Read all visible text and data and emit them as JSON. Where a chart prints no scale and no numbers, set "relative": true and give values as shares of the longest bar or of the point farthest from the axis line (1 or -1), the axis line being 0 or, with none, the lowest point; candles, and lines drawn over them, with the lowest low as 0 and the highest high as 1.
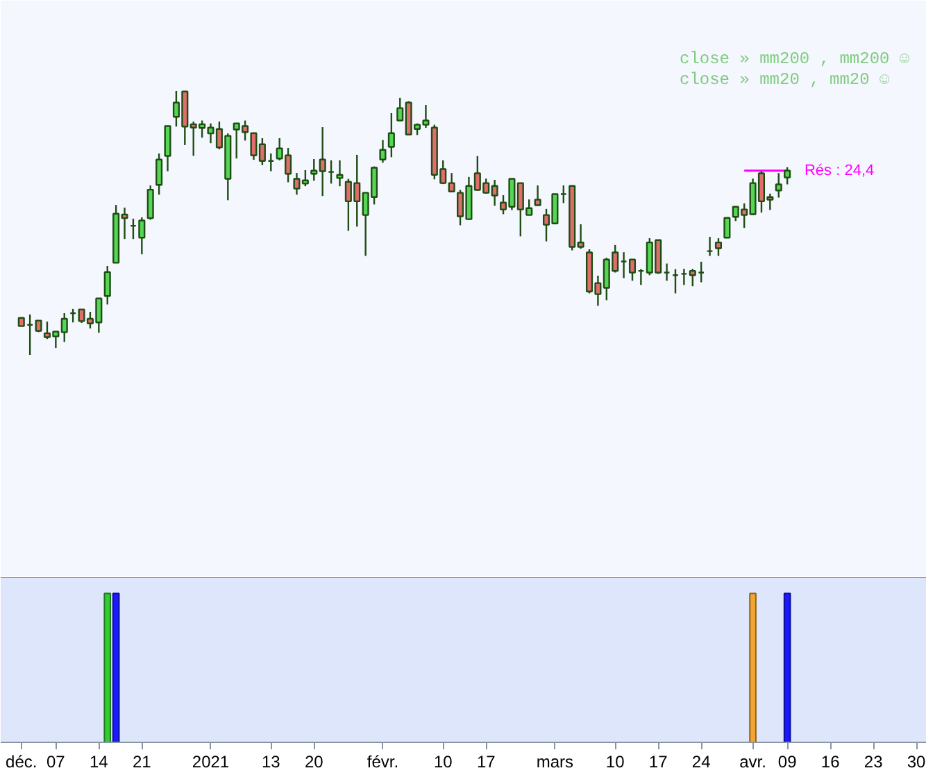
{
  "chart_data": [
    {
      "type": "candlestick",
      "relative": true,
      "tick_labels": false,
      "categories": [
        null,
        null,
        null,
        null,
        null,
        null,
        null,
        null,
        null,
        null,
        null,
        null,
        null,
        null,
        null,
        null,
        null,
        null,
        null,
        null,
        null,
        null,
        null,
        null,
        null,
        null,
        null,
        null,
        null,
        null,
        null,
        null,
        null,
        null,
        null,
        null,
        null,
        null,
        null,
        null,
        null,
        null,
        null,
        null,
        null,
        null,
        null,
        null,
        null,
        null,
        null,
        null,
        null,
        null,
        null,
        null,
        null,
        null,
        null,
        null,
        null,
        null,
        null,
        null,
        null,
        null,
        null,
        null,
        null,
        null,
        null,
        null,
        null,
        null,
        null,
        null,
        null,
        null,
        null,
        null,
        null,
        null,
        null,
        null,
        null,
        null,
        null,
        null,
        null,
        null,
        null,
        null,
        null,
        null,
        null,
        null,
        null,
        null,
        null,
        null,
        null,
        null,
        null,
        null,
        null
      ],
      "ohlc": [
        [
          0.14,
          0.14,
          0.109,
          0.109
        ],
        [
          0.114,
          0.153,
          0,
          0.114
        ],
        [
          0.13,
          0.13,
          0.086,
          0.091
        ],
        [
          0.082,
          0.126,
          0.06,
          0.067
        ],
        [
          0.07,
          0.088,
          0.026,
          0.088
        ],
        [
          0.086,
          0.158,
          0.049,
          0.137
        ],
        [
          0.158,
          0.174,
          0.123,
          0.158
        ],
        [
          0.172,
          0.172,
          0.121,
          0.128
        ],
        [
          0.137,
          0.163,
          0.1,
          0.119
        ],
        [
          0.123,
          0.214,
          0.084,
          0.214
        ],
        [
          0.223,
          0.337,
          0.191,
          0.314
        ],
        [
          0.349,
          0.568,
          0.349,
          0.535
        ],
        [
          0.532,
          0.558,
          0.439,
          0.518
        ],
        [
          0.489,
          0.516,
          0.439,
          0.489
        ],
        [
          0.444,
          0.521,
          0.381,
          0.509
        ],
        [
          0.518,
          0.642,
          0.512,
          0.626
        ],
        [
          0.644,
          0.763,
          0.607,
          0.74
        ],
        [
          0.754,
          0.867,
          0.696,
          0.867
        ],
        [
          0.902,
          1,
          0.865,
          0.956
        ],
        [
          0.998,
          0.998,
          0.795,
          0.865
        ],
        [
          0.874,
          0.884,
          0.754,
          0.861
        ],
        [
          0.86,
          0.888,
          0.823,
          0.874
        ],
        [
          0.839,
          0.877,
          0.802,
          0.861
        ],
        [
          0.856,
          0.884,
          0.779,
          0.786
        ],
        [
          0.667,
          0.839,
          0.586,
          0.83
        ],
        [
          0.854,
          0.877,
          0.744,
          0.877
        ],
        [
          0.867,
          0.888,
          0.812,
          0.844
        ],
        [
          0.84,
          0.84,
          0.739,
          0.756
        ],
        [
          0.798,
          0.821,
          0.719,
          0.735
        ],
        [
          0.735,
          0.763,
          0.696,
          0.735
        ],
        [
          0.744,
          0.821,
          0.737,
          0.782
        ],
        [
          0.756,
          0.784,
          0.654,
          0.686
        ],
        [
          0.667,
          0.689,
          0.607,
          0.63
        ],
        [
          0.649,
          0.7,
          0.639,
          0.661
        ],
        [
          0.686,
          0.742,
          0.66,
          0.698
        ],
        [
          0.74,
          0.863,
          0.602,
          0.696
        ],
        [
          0.693,
          0.737,
          0.649,
          0.693
        ],
        [
          0.67,
          0.737,
          0.639,
          0.682
        ],
        [
          0.656,
          0.667,
          0.47,
          0.582
        ],
        [
          0.651,
          0.758,
          0.486,
          0.582
        ],
        [
          0.53,
          0.614,
          0.375,
          0.614
        ],
        [
          0.598,
          0.714,
          0.57,
          0.709
        ],
        [
          0.74,
          0.814,
          0.728,
          0.777
        ],
        [
          0.788,
          0.916,
          0.749,
          0.84
        ],
        [
          0.888,
          0.974,
          0.888,
          0.935
        ],
        [
          0.956,
          0.961,
          0.835,
          0.835
        ],
        [
          0.856,
          0.877,
          0.833,
          0.872
        ],
        [
          0.872,
          0.947,
          0.86,
          0.888
        ],
        [
          0.861,
          0.872,
          0.665,
          0.682
        ],
        [
          0.704,
          0.737,
          0.647,
          0.651
        ],
        [
          0.651,
          0.689,
          0.616,
          0.619
        ],
        [
          0.614,
          0.625,
          0.491,
          0.525
        ],
        [
          0.514,
          0.674,
          0.512,
          0.64
        ],
        [
          0.688,
          0.753,
          0.623,
          0.625
        ],
        [
          0.651,
          0.668,
          0.611,
          0.614
        ],
        [
          0.64,
          0.663,
          0.565,
          0.604
        ],
        [
          0.577,
          0.605,
          0.533,
          0.551
        ],
        [
          0.561,
          0.667,
          0.549,
          0.667
        ],
        [
          0.651,
          0.651,
          0.449,
          0.551
        ],
        [
          0.53,
          0.589,
          0.53,
          0.556
        ],
        [
          0.588,
          0.642,
          0.565,
          0.567
        ],
        [
          0.53,
          0.553,
          0.43,
          0.493
        ],
        [
          0.498,
          0.609,
          0.498,
          0.609
        ],
        [
          0.609,
          0.642,
          0.575,
          0.609
        ],
        [
          0.64,
          0.64,
          0.396,
          0.409
        ],
        [
          0.426,
          0.495,
          0.402,
          0.409
        ],
        [
          0.388,
          0.4,
          0.233,
          0.24
        ],
        [
          0.272,
          0.3,
          0.186,
          0.23
        ],
        [
          0.254,
          0.368,
          0.207,
          0.361
        ],
        [
          0.388,
          0.416,
          0.312,
          0.318
        ],
        [
          0.354,
          0.389,
          0.291,
          0.354
        ],
        [
          0.361,
          0.361,
          0.281,
          0.312
        ],
        [
          0.318,
          0.325,
          0.265,
          0.318
        ],
        [
          0.312,
          0.442,
          0.302,
          0.426
        ],
        [
          0.435,
          0.435,
          0.307,
          0.312
        ],
        [
          0.312,
          0.346,
          0.281,
          0.312
        ],
        [
          0.302,
          0.325,
          0.233,
          0.302
        ],
        [
          0.307,
          0.326,
          0.265,
          0.307
        ],
        [
          0.318,
          0.326,
          0.26,
          0.302
        ],
        [
          0.312,
          0.353,
          0.275,
          0.312
        ],
        [
          0.393,
          0.447,
          0.375,
          0.393
        ],
        [
          0.426,
          0.442,
          0.375,
          0.404
        ],
        [
          0.444,
          0.519,
          0.444,
          0.519
        ],
        [
          0.523,
          0.561,
          0.507,
          0.561
        ],
        [
          0.551,
          0.574,
          0.481,
          0.53
        ],
        [
          0.533,
          0.668,
          0.53,
          0.651
        ],
        [
          0.688,
          0.696,
          0.539,
          0.582
        ],
        [
          0.598,
          0.611,
          0.549,
          0.588
        ],
        [
          0.623,
          0.689,
          0.596,
          0.646
        ],
        [
          0.672,
          0.711,
          0.646,
          0.698
        ],
        null,
        null,
        null,
        null,
        null,
        null,
        null,
        null,
        null,
        null,
        null,
        null,
        null,
        null,
        null
      ],
      "colors": [
        "#e26d6d",
        "#1e4d14",
        "#e26d6d",
        "#e26d6d",
        "#55d655",
        "#55d655",
        "#1e4d14",
        "#e26d6d",
        "#e26d6d",
        "#55d655",
        "#55d655",
        "#55d655",
        "#e26d6d",
        "#1e4d14",
        "#55d655",
        "#55d655",
        "#55d655",
        "#55d655",
        "#55d655",
        "#e26d6d",
        "#e26d6d",
        "#55d655",
        "#55d655",
        "#e26d6d",
        "#55d655",
        "#55d655",
        "#e26d6d",
        "#e26d6d",
        "#e26d6d",
        "#1e4d14",
        "#55d655",
        "#e26d6d",
        "#e26d6d",
        "#55d655",
        "#55d655",
        "#e26d6d",
        "#1e4d14",
        "#55d655",
        "#e26d6d",
        "#e26d6d",
        "#55d655",
        "#55d655",
        "#55d655",
        "#55d655",
        "#55d655",
        "#e26d6d",
        "#55d655",
        "#55d655",
        "#e26d6d",
        "#e26d6d",
        "#e26d6d",
        "#e26d6d",
        "#55d655",
        "#e26d6d",
        "#e26d6d",
        "#e26d6d",
        "#e26d6d",
        "#55d655",
        "#e26d6d",
        "#55d655",
        "#e26d6d",
        "#e26d6d",
        "#55d655",
        "#1e4d14",
        "#e26d6d",
        "#e26d6d",
        "#e26d6d",
        "#e26d6d",
        "#55d655",
        "#e26d6d",
        "#1e4d14",
        "#e26d6d",
        "#1e4d14",
        "#55d655",
        "#e26d6d",
        "#1e4d14",
        "#1e4d14",
        "#1e4d14",
        "#e26d6d",
        "#1e4d14",
        "#1e4d14",
        "#e26d6d",
        "#55d655",
        "#55d655",
        "#e26d6d",
        "#55d655",
        "#e26d6d",
        "#e26d6d",
        "#55d655",
        "#55d655",
        null,
        null,
        null,
        null,
        null,
        null,
        null,
        null,
        null,
        null,
        null,
        null,
        null,
        null,
        null
      ],
      "series": [
        {
          "type": "line",
          "name": "Rés : 24,4",
          "color": "#ff00ff",
          "values": [
            null,
            null,
            null,
            null,
            null,
            null,
            null,
            null,
            null,
            null,
            null,
            null,
            null,
            null,
            null,
            null,
            null,
            null,
            null,
            null,
            null,
            null,
            null,
            null,
            null,
            null,
            null,
            null,
            null,
            null,
            null,
            null,
            null,
            null,
            null,
            null,
            null,
            null,
            null,
            null,
            null,
            null,
            null,
            null,
            null,
            null,
            null,
            null,
            null,
            null,
            null,
            null,
            null,
            null,
            null,
            null,
            null,
            null,
            null,
            null,
            null,
            null,
            null,
            null,
            null,
            null,
            null,
            null,
            null,
            null,
            null,
            null,
            null,
            null,
            null,
            null,
            null,
            null,
            null,
            null,
            null,
            null,
            null,
            null,
            0.698,
            0.698,
            0.698,
            0.698,
            0.698,
            0.698,
            null,
            null,
            null,
            null,
            null,
            null,
            null,
            null,
            null,
            null,
            null,
            null,
            null,
            null,
            null
          ]
        }
      ],
      "annotations": [
        "close » mm200 , mm200 ☺",
        "close » mm20 , mm20 ☺"
      ]
    },
    {
      "type": "bar",
      "relative": true,
      "tick_labels": "x",
      "categories": [
        "déc.",
        null,
        null,
        null,
        "07",
        null,
        null,
        null,
        null,
        "14",
        null,
        null,
        null,
        null,
        "21",
        null,
        null,
        null,
        null,
        null,
        null,
        null,
        "2021",
        null,
        null,
        null,
        null,
        null,
        null,
        "13",
        null,
        null,
        null,
        null,
        "20",
        null,
        null,
        null,
        null,
        null,
        null,
        null,
        "févr.",
        null,
        null,
        null,
        null,
        null,
        null,
        "10",
        null,
        null,
        null,
        null,
        "17",
        null,
        null,
        null,
        null,
        null,
        null,
        null,
        "mars",
        null,
        null,
        null,
        null,
        null,
        null,
        "10",
        null,
        null,
        null,
        null,
        "17",
        null,
        null,
        null,
        null,
        "24",
        null,
        null,
        null,
        null,
        null,
        "avr.",
        null,
        null,
        null,
        "09",
        null,
        null,
        null,
        null,
        "16",
        null,
        null,
        null,
        null,
        "23",
        null,
        null,
        null,
        null,
        "30"
      ],
      "values": [
        null,
        null,
        null,
        null,
        null,
        null,
        null,
        null,
        null,
        null,
        1,
        1,
        null,
        null,
        null,
        null,
        null,
        null,
        null,
        null,
        null,
        null,
        null,
        null,
        null,
        null,
        null,
        null,
        null,
        null,
        null,
        null,
        null,
        null,
        null,
        null,
        null,
        null,
        null,
        null,
        null,
        null,
        null,
        null,
        null,
        null,
        null,
        null,
        null,
        null,
        null,
        null,
        null,
        null,
        null,
        null,
        null,
        null,
        null,
        null,
        null,
        null,
        null,
        null,
        null,
        null,
        null,
        null,
        null,
        null,
        null,
        null,
        null,
        null,
        null,
        null,
        null,
        null,
        null,
        null,
        null,
        null,
        null,
        null,
        null,
        1,
        null,
        null,
        null,
        1,
        null,
        null,
        null,
        null,
        null,
        null,
        null,
        null,
        null,
        null,
        null,
        null,
        null,
        null,
        null
      ],
      "colors": [
        null,
        null,
        null,
        null,
        null,
        null,
        null,
        null,
        null,
        null,
        "#33cc33",
        "#1a1aff",
        null,
        null,
        null,
        null,
        null,
        null,
        null,
        null,
        null,
        null,
        null,
        null,
        null,
        null,
        null,
        null,
        null,
        null,
        null,
        null,
        null,
        null,
        null,
        null,
        null,
        null,
        null,
        null,
        null,
        null,
        null,
        null,
        null,
        null,
        null,
        null,
        null,
        null,
        null,
        null,
        null,
        null,
        null,
        null,
        null,
        null,
        null,
        null,
        null,
        null,
        null,
        null,
        null,
        null,
        null,
        null,
        null,
        null,
        null,
        null,
        null,
        null,
        null,
        null,
        null,
        null,
        null,
        null,
        null,
        null,
        null,
        null,
        null,
        "#f2a530",
        null,
        null,
        null,
        "#1a1aff",
        null,
        null,
        null,
        null,
        null,
        null,
        null,
        null,
        null,
        null,
        null,
        null,
        null,
        null,
        null
      ]
    }
  ]
}
